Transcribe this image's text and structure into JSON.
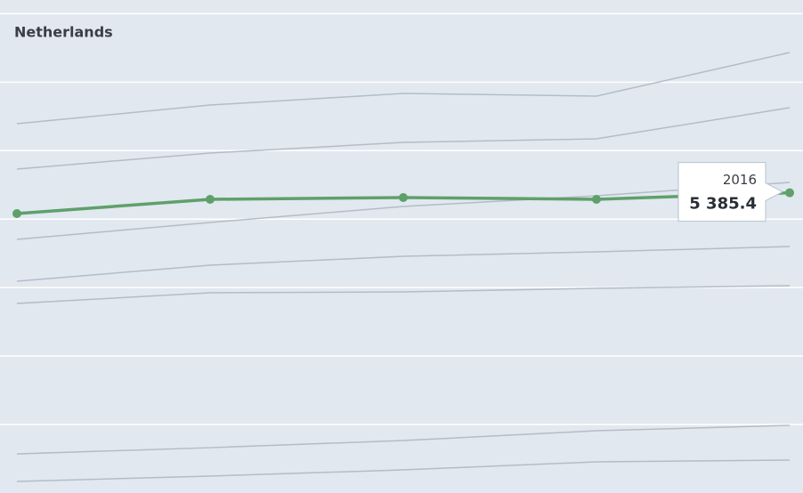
{
  "chart_data": {
    "type": "line",
    "title": "Netherlands",
    "categories": [
      null,
      null,
      null,
      null,
      "2016"
    ],
    "ylim": [
      1000,
      8200
    ],
    "yticks": [
      2000,
      3000,
      4000,
      5000,
      6000,
      7000,
      8000
    ],
    "grid": true,
    "series": [
      {
        "color": "#b4bcc6",
        "values": [
          6393,
          6666,
          6835,
          6796,
          7433
        ]
      },
      {
        "color": "#b4bcc6",
        "values": [
          5731,
          5965,
          6120,
          6172,
          6627
        ]
      },
      {
        "color": "#b4bcc6",
        "values": [
          4704,
          4951,
          5185,
          5341,
          5536
        ]
      },
      {
        "color": "#b4bcc6",
        "values": [
          4093,
          4327,
          4457,
          4522,
          4600
        ]
      },
      {
        "color": "#b4bcc6",
        "values": [
          3768,
          3924,
          3937,
          3989,
          4028
        ]
      },
      {
        "color": "#b4bcc6",
        "values": [
          1571,
          1662,
          1766,
          1909,
          1987
        ]
      },
      {
        "color": "#b4bcc6",
        "values": [
          1169,
          1247,
          1338,
          1455,
          1481
        ]
      },
      {
        "name": "Netherlands",
        "color": "#5fa06a",
        "values": [
          5081,
          5289,
          5315,
          5289,
          5385.4
        ],
        "value_labels": [
          null,
          null,
          null,
          null,
          "5 385.4"
        ],
        "highlight": true
      }
    ]
  }
}
